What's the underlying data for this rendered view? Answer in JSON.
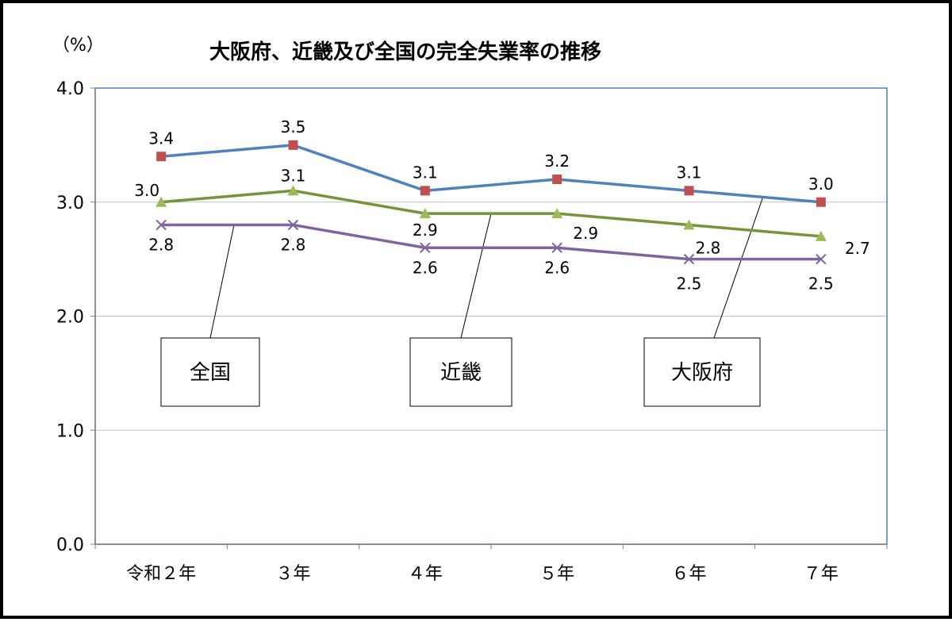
{
  "chart_data": {
    "type": "line",
    "title": "大阪府、近畿及び全国の完全失業率の推移",
    "ylabel": "（%）",
    "ylim": [
      0,
      4.0
    ],
    "yticks": [
      "0.0",
      "1.0",
      "2.0",
      "3.0",
      "4.0"
    ],
    "categories": [
      "令和２年",
      "３年",
      "４年",
      "５年",
      "６年",
      "７年"
    ],
    "grid": true,
    "legend": "callouts",
    "series": [
      {
        "name": "大阪府",
        "values": [
          3.4,
          3.5,
          3.1,
          3.2,
          3.1,
          3.0
        ],
        "labels": [
          "3.4",
          "3.5",
          "3.1",
          "3.2",
          "3.1",
          "3.0"
        ],
        "line_color": "#4f81bd",
        "marker": "square",
        "marker_color": "#c0504d"
      },
      {
        "name": "近畿",
        "values": [
          3.0,
          3.1,
          2.9,
          2.9,
          2.8,
          2.7
        ],
        "labels": [
          "3.0",
          "3.1",
          "2.9",
          "2.9",
          "2.8",
          "2.7"
        ],
        "line_color": "#77933c",
        "marker": "triangle",
        "marker_color": "#9bbb59"
      },
      {
        "name": "全国",
        "values": [
          2.8,
          2.8,
          2.6,
          2.6,
          2.5,
          2.5
        ],
        "labels": [
          "2.8",
          "2.8",
          "2.6",
          "2.6",
          "2.5",
          "2.5"
        ],
        "line_color": "#8064a2",
        "marker": "x",
        "marker_color": "#8064a2"
      }
    ]
  }
}
